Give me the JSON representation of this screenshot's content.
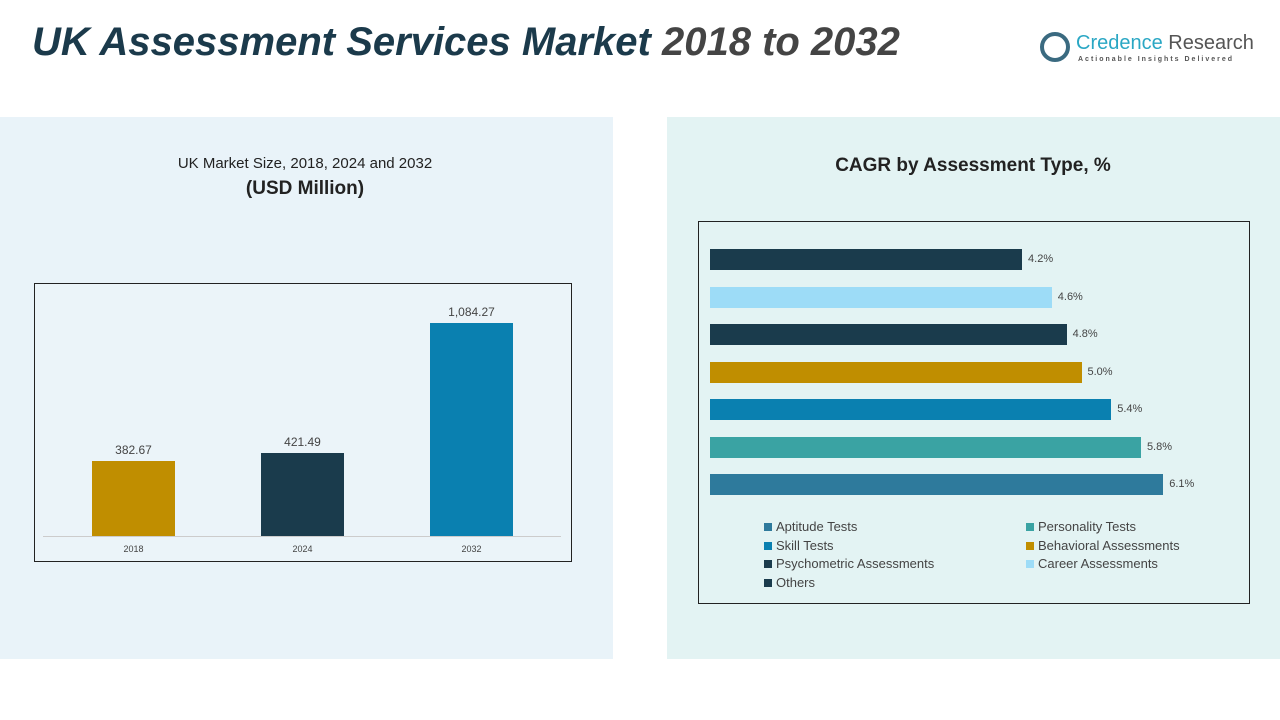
{
  "title": {
    "main": "UK Assessment Services Market ",
    "years": "2018 to 2032"
  },
  "logo": {
    "name1": "Credence",
    "name2": " Research",
    "tagline": "Actionable Insights Delivered"
  },
  "chart_data": [
    {
      "type": "bar",
      "title": "UK Market Size, 2018, 2024 and 2032",
      "subtitle": "(USD Million)",
      "categories": [
        "2018",
        "2024",
        "2032"
      ],
      "values": [
        382.67,
        421.49,
        1084.27
      ],
      "labels": [
        "382.67",
        "421.49",
        "1,084.27"
      ],
      "colors": [
        "#c08e00",
        "#1a3b4c",
        "#0a80b0"
      ],
      "ylim": [
        0,
        1200
      ]
    },
    {
      "type": "bar",
      "orientation": "horizontal",
      "title": "CAGR by Assessment Type, %",
      "categories": [
        "Others",
        "Career Assessments",
        "Psychometric Assessments",
        "Behavioral Assessments",
        "Skill Tests",
        "Personality Tests",
        "Aptitude Tests"
      ],
      "values": [
        4.2,
        4.6,
        4.8,
        5.0,
        5.4,
        5.8,
        6.1
      ],
      "labels": [
        "4.2%",
        "4.6%",
        "4.8%",
        "5.0%",
        "5.4%",
        "5.8%",
        "6.1%"
      ],
      "colors": [
        "#1a3b4c",
        "#9ddcf7",
        "#1a3b4c",
        "#c08e00",
        "#0a80b0",
        "#3aa3a3",
        "#2e7a9c"
      ],
      "legend": [
        {
          "name": "Aptitude Tests",
          "color": "#2e7a9c"
        },
        {
          "name": "Personality Tests",
          "color": "#3aa3a3"
        },
        {
          "name": "Skill Tests",
          "color": "#0a80b0"
        },
        {
          "name": "Behavioral Assessments",
          "color": "#c08e00"
        },
        {
          "name": "Psychometric Assessments",
          "color": "#1a3b4c"
        },
        {
          "name": "Career Assessments",
          "color": "#9ddcf7"
        },
        {
          "name": "Others",
          "color": "#1a3b4c"
        }
      ],
      "legend_position": "bottom"
    }
  ]
}
